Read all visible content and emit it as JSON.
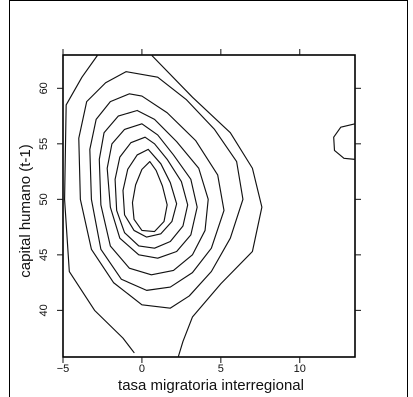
{
  "chart_data": {
    "type": "contour",
    "xlabel": "tasa migratoria interregional",
    "ylabel": "capital humano (t-1)",
    "xlim": [
      -5,
      13.5
    ],
    "ylim": [
      35.8,
      63
    ],
    "x_ticks": [
      -5,
      0,
      5,
      10
    ],
    "y_ticks": [
      40,
      45,
      50,
      55,
      60
    ],
    "x_tick_labels": [
      "−5",
      "0",
      "5",
      "10"
    ],
    "y_tick_labels": [
      "40",
      "45",
      "50",
      "55",
      "60"
    ],
    "grid": false,
    "legend": "none",
    "contours": [
      {
        "level": 1,
        "points": [
          [
            -2.8,
            63
          ],
          [
            -3.8,
            61
          ],
          [
            -4.8,
            58.5
          ],
          [
            -4.9,
            50
          ],
          [
            -4.6,
            43.5
          ],
          [
            -3.0,
            40.0
          ],
          [
            -1.2,
            37.5
          ],
          [
            -0.5,
            36.2
          ]
        ]
      },
      {
        "level": 2,
        "points": [
          [
            0.6,
            63
          ],
          [
            3.2,
            59.2
          ],
          [
            5.6,
            56.0
          ],
          [
            7.0,
            52.8
          ],
          [
            7.6,
            49.3
          ],
          [
            7.0,
            45.3
          ],
          [
            5.0,
            42.4
          ],
          [
            3.2,
            39.4
          ],
          [
            2.6,
            37.2
          ],
          [
            2.3,
            35.8
          ]
        ]
      },
      {
        "level": 3,
        "points": [
          [
            -1.0,
            61.5
          ],
          [
            -2.3,
            60.5
          ],
          [
            -3.5,
            58.8
          ],
          [
            -4.0,
            55.5
          ],
          [
            -3.9,
            50.0
          ],
          [
            -3.2,
            45.5
          ],
          [
            -1.8,
            42.5
          ],
          [
            0.0,
            40.5
          ],
          [
            1.8,
            40.2
          ],
          [
            3.0,
            41.3
          ],
          [
            4.4,
            43.5
          ],
          [
            5.6,
            46.5
          ],
          [
            6.4,
            50.0
          ],
          [
            6.0,
            53.4
          ],
          [
            4.6,
            56.3
          ],
          [
            2.8,
            59.0
          ],
          [
            1.0,
            61.0
          ],
          [
            -1.0,
            61.5
          ]
        ]
      },
      {
        "level": 4,
        "points": [
          [
            -0.8,
            59.5
          ],
          [
            -2.0,
            58.8
          ],
          [
            -2.9,
            57.2
          ],
          [
            -3.3,
            54.5
          ],
          [
            -3.2,
            50.0
          ],
          [
            -2.6,
            45.5
          ],
          [
            -1.3,
            42.8
          ],
          [
            0.3,
            41.8
          ],
          [
            1.8,
            42.1
          ],
          [
            3.2,
            43.4
          ],
          [
            4.4,
            45.6
          ],
          [
            5.2,
            49.0
          ],
          [
            4.8,
            52.2
          ],
          [
            3.4,
            55.3
          ],
          [
            1.6,
            57.8
          ],
          [
            0.0,
            59.3
          ],
          [
            -0.8,
            59.5
          ]
        ]
      },
      {
        "level": 5,
        "points": [
          [
            -0.3,
            58.0
          ],
          [
            -1.5,
            57.5
          ],
          [
            -2.4,
            56.0
          ],
          [
            -2.7,
            53.6
          ],
          [
            -2.6,
            49.5
          ],
          [
            -2.0,
            45.8
          ],
          [
            -0.8,
            43.8
          ],
          [
            0.6,
            43.2
          ],
          [
            2.0,
            43.6
          ],
          [
            3.2,
            45.0
          ],
          [
            4.0,
            47.2
          ],
          [
            4.2,
            50.0
          ],
          [
            3.6,
            52.8
          ],
          [
            2.2,
            55.2
          ],
          [
            0.8,
            57.2
          ],
          [
            -0.3,
            58.0
          ]
        ]
      },
      {
        "level": 6,
        "points": [
          [
            0.0,
            56.8
          ],
          [
            -1.1,
            56.3
          ],
          [
            -1.9,
            55.0
          ],
          [
            -2.2,
            52.8
          ],
          [
            -2.0,
            49.3
          ],
          [
            -1.4,
            46.5
          ],
          [
            -0.2,
            45.0
          ],
          [
            1.0,
            44.7
          ],
          [
            2.2,
            45.3
          ],
          [
            3.1,
            46.8
          ],
          [
            3.5,
            49.3
          ],
          [
            3.1,
            51.8
          ],
          [
            2.0,
            54.0
          ],
          [
            1.0,
            55.8
          ],
          [
            0.0,
            56.8
          ]
        ]
      },
      {
        "level": 7,
        "points": [
          [
            0.2,
            55.6
          ],
          [
            -0.7,
            55.1
          ],
          [
            -1.4,
            53.8
          ],
          [
            -1.7,
            51.8
          ],
          [
            -1.6,
            49.0
          ],
          [
            -1.1,
            47.0
          ],
          [
            -0.2,
            45.8
          ],
          [
            0.8,
            45.6
          ],
          [
            1.8,
            46.2
          ],
          [
            2.6,
            47.6
          ],
          [
            2.9,
            49.5
          ],
          [
            2.5,
            51.6
          ],
          [
            1.6,
            53.6
          ],
          [
            0.8,
            55.0
          ],
          [
            0.2,
            55.6
          ]
        ]
      },
      {
        "level": 8,
        "points": [
          [
            0.4,
            54.5
          ],
          [
            -0.3,
            54.0
          ],
          [
            -0.9,
            52.7
          ],
          [
            -1.2,
            50.8
          ],
          [
            -1.1,
            48.6
          ],
          [
            -0.5,
            47.2
          ],
          [
            0.3,
            46.6
          ],
          [
            1.2,
            46.9
          ],
          [
            1.9,
            48.0
          ],
          [
            2.2,
            49.6
          ],
          [
            1.8,
            51.5
          ],
          [
            1.2,
            53.2
          ],
          [
            0.4,
            54.5
          ]
        ]
      },
      {
        "level": 9,
        "points": [
          [
            0.5,
            53.4
          ],
          [
            0.0,
            52.7
          ],
          [
            -0.4,
            51.3
          ],
          [
            -0.6,
            49.7
          ],
          [
            -0.5,
            48.2
          ],
          [
            0.0,
            47.2
          ],
          [
            0.8,
            47.1
          ],
          [
            1.4,
            48.0
          ],
          [
            1.6,
            49.5
          ],
          [
            1.3,
            51.2
          ],
          [
            0.9,
            52.6
          ],
          [
            0.5,
            53.4
          ]
        ]
      },
      {
        "level": 1,
        "points": [
          [
            13.5,
            56.8
          ],
          [
            12.6,
            56.5
          ],
          [
            12.15,
            55.6
          ],
          [
            12.2,
            54.4
          ],
          [
            12.8,
            53.7
          ],
          [
            13.5,
            53.6
          ]
        ]
      }
    ]
  },
  "colors": {
    "background": "#ffffff",
    "frame": "#000000",
    "contour": "#111111",
    "axis": "#111111"
  }
}
